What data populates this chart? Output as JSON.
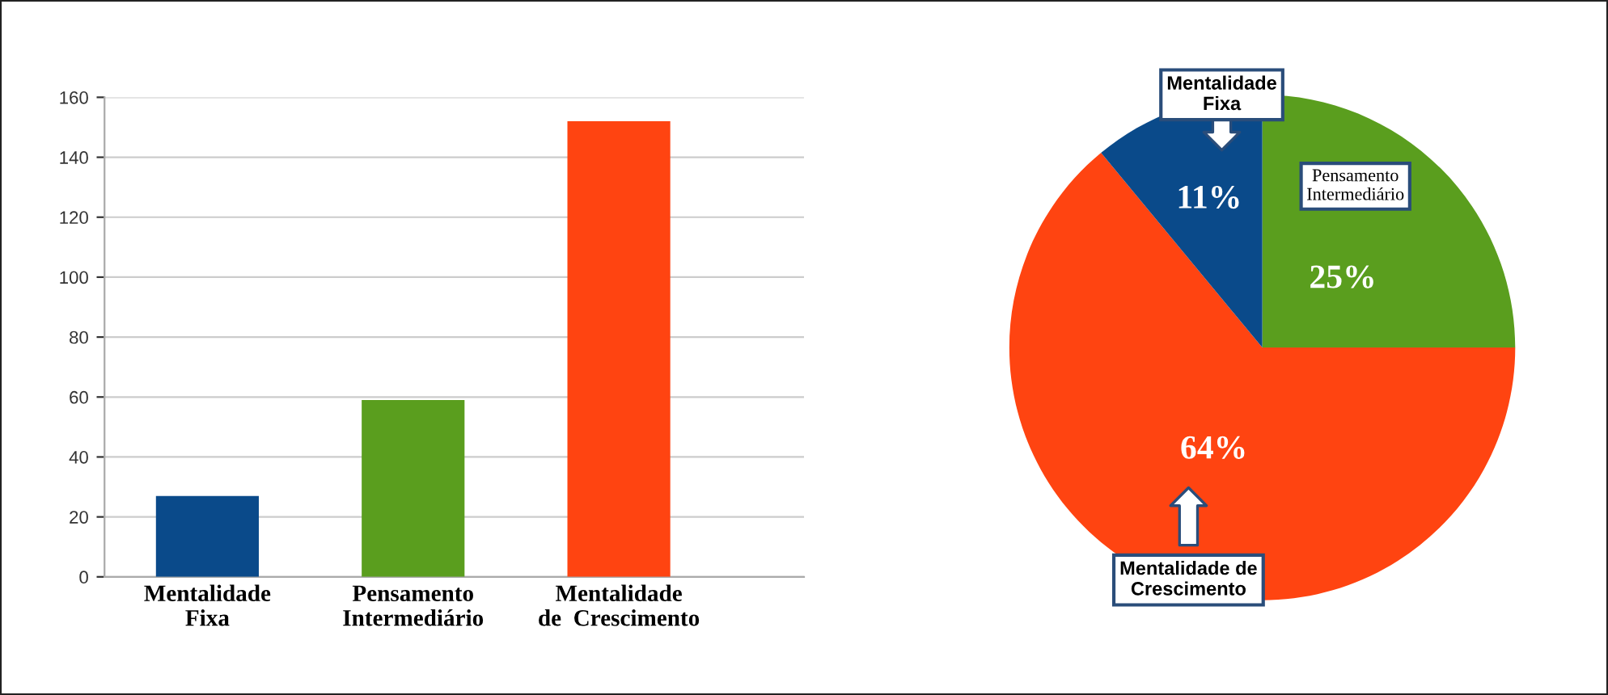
{
  "chart_data": [
    {
      "type": "bar",
      "categories": [
        "Mentalidade\nFixa",
        "Pensamento\nIntermediário",
        "Mentalidade\nde  Crescimento"
      ],
      "values": [
        27,
        59,
        152
      ],
      "colors": [
        "#0a4a8a",
        "#5a9e1e",
        "#ff4411"
      ],
      "ylim": [
        0,
        160
      ],
      "yticks": [
        0,
        20,
        40,
        60,
        80,
        100,
        120,
        140,
        160
      ],
      "grid": "y",
      "legend": false
    },
    {
      "type": "pie",
      "categories": [
        "Pensamento\nIntermediário",
        "Mentalidade de\nCrescimento",
        "Mentalidade\nFixa"
      ],
      "values": [
        25,
        64,
        11
      ],
      "colors": [
        "#5a9e1e",
        "#ff4411",
        "#0a4a8a"
      ],
      "value_labels": [
        "25%",
        "64%",
        "11%"
      ],
      "legend": false
    }
  ]
}
